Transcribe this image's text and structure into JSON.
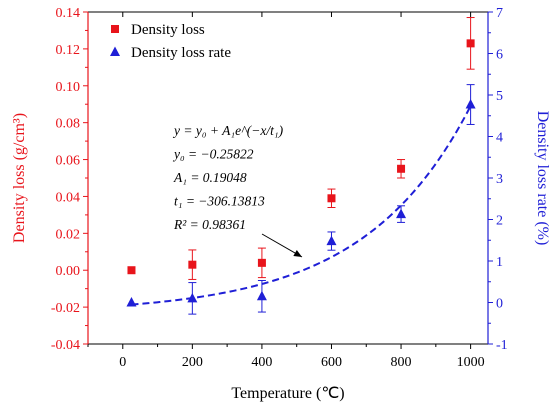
{
  "chart_data": {
    "type": "scatter",
    "xlabel": "Temperature (℃)",
    "x_ticks": [
      0,
      200,
      400,
      600,
      800,
      1000
    ],
    "xlim": [
      -100,
      1050
    ],
    "y_left": {
      "label": "Density loss (g/cm³)",
      "ylim": [
        -0.04,
        0.14
      ],
      "ticks": [
        "-0.04",
        "-0.02",
        "0.00",
        "0.02",
        "0.04",
        "0.06",
        "0.08",
        "0.10",
        "0.12",
        "0.14"
      ],
      "color": "#e8141b"
    },
    "y_right": {
      "label": "Density loss rate (%)",
      "ylim": [
        -1,
        7
      ],
      "ticks": [
        "-1",
        "0",
        "1",
        "2",
        "3",
        "4",
        "5",
        "6",
        "7"
      ],
      "color": "#1f1fd6"
    },
    "series": [
      {
        "name": "Density loss",
        "axis": "left",
        "marker": "square",
        "color": "#e8141b",
        "x": [
          25,
          200,
          400,
          600,
          800,
          1000
        ],
        "y": [
          0.0,
          0.003,
          0.004,
          0.039,
          0.055,
          0.123
        ],
        "err": [
          0.0,
          0.008,
          0.008,
          0.005,
          0.005,
          0.014
        ]
      },
      {
        "name": "Density loss rate",
        "axis": "right",
        "marker": "triangle",
        "color": "#1f1fd6",
        "x": [
          25,
          200,
          400,
          600,
          800,
          1000
        ],
        "y": [
          0.0,
          0.1,
          0.15,
          1.48,
          2.13,
          4.77
        ],
        "err": [
          0.0,
          0.38,
          0.38,
          0.22,
          0.2,
          0.48
        ]
      }
    ],
    "fit": {
      "axis": "right",
      "color": "#1f1fd6",
      "y0": -0.25822,
      "A1": 0.19048,
      "t1": -306.13813,
      "x_range": [
        25,
        1000
      ],
      "equation_lines": [
        {
          "key": "eq_main",
          "text": "y = y₀ + A₁e^(−x/t₁)"
        },
        {
          "key": "y0",
          "text": "y₀ = −0.25822"
        },
        {
          "key": "A1",
          "text": "A₁ = 0.19048"
        },
        {
          "key": "t1",
          "text": "t₁ = −306.13813"
        },
        {
          "key": "R2",
          "text": "R² = 0.98361"
        }
      ]
    },
    "legend": {
      "position": "top-left",
      "entries": [
        "Density loss",
        "Density loss rate"
      ]
    }
  }
}
